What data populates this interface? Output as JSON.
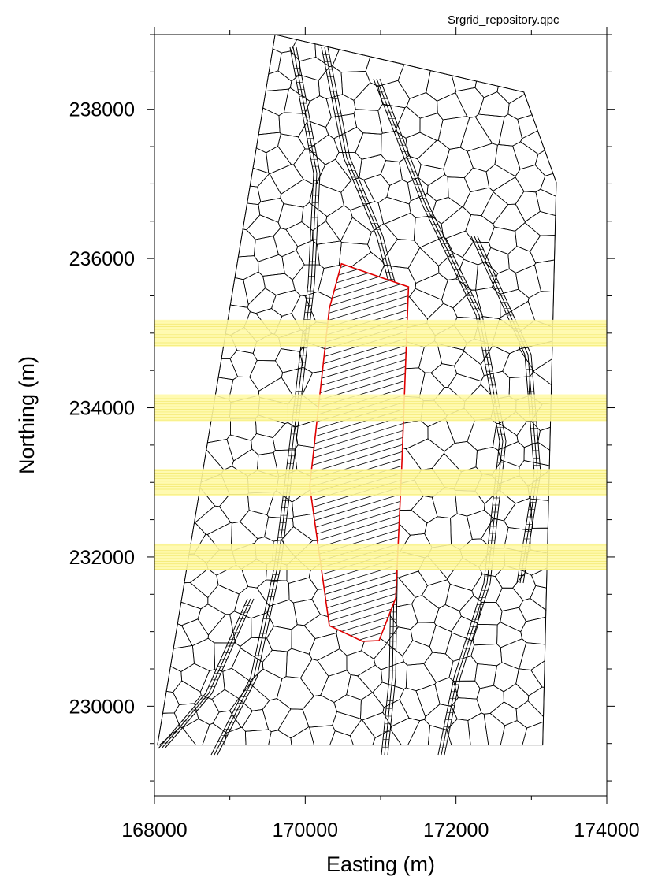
{
  "file_label": "Srgrid_repository.qpc",
  "chart_data": {
    "type": "mesh",
    "xlabel": "Easting (m)",
    "ylabel": "Northing (m)",
    "xlim": [
      168000,
      174000
    ],
    "ylim": [
      228800,
      239000
    ],
    "x_ticks": [
      168000,
      170000,
      172000,
      174000
    ],
    "x_tick_labels": [
      "168000",
      "170000",
      "172000",
      "174000"
    ],
    "y_ticks": [
      230000,
      232000,
      234000,
      236000,
      238000
    ],
    "y_tick_labels": [
      "230000",
      "232000",
      "234000",
      "236000",
      "238000"
    ],
    "grid": false,
    "mesh_boundary": [
      [
        168040,
        229480
      ],
      [
        169600,
        239000
      ],
      [
        172900,
        238230
      ],
      [
        173330,
        237020
      ],
      [
        173150,
        229480
      ]
    ],
    "repository_outline": [
      [
        170480,
        235930
      ],
      [
        171370,
        235620
      ],
      [
        171280,
        233200
      ],
      [
        171200,
        231450
      ],
      [
        170980,
        230880
      ],
      [
        170760,
        230870
      ],
      [
        170320,
        231080
      ],
      [
        170060,
        232950
      ],
      [
        170320,
        235330
      ]
    ],
    "highlight_bands": [
      {
        "y_center": 235000
      },
      {
        "y_center": 234000
      },
      {
        "y_center": 233000
      },
      {
        "y_center": 232000
      }
    ],
    "colors": {
      "mesh": "#000000",
      "repository_outline": "#e00000",
      "highlight_band": "#fff9a6",
      "highlight_stripe": "#f2e86a"
    }
  }
}
